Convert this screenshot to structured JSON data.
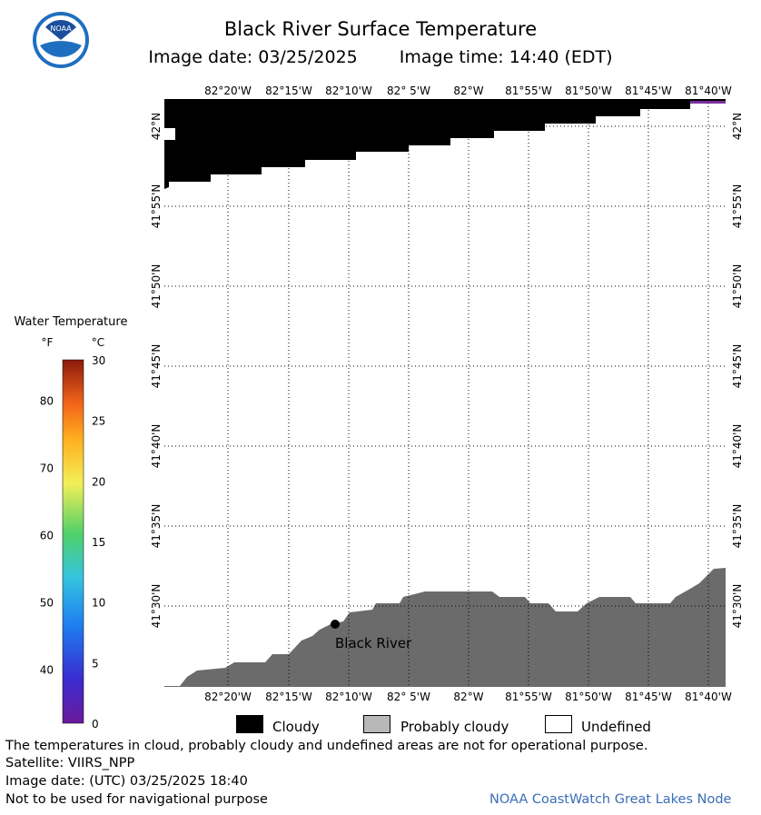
{
  "header": {
    "title": "Black River Surface Temperature",
    "image_date": "Image date: 03/25/2025",
    "image_time": "Image time: 14:40 (EDT)"
  },
  "logo": {
    "text": "NOAA",
    "icon": "noaa-logo-icon"
  },
  "map": {
    "lon_labels": [
      "82°20'W",
      "82°15'W",
      "82°10'W",
      "82° 5'W",
      "82°W",
      "81°55'W",
      "81°50'W",
      "81°45'W",
      "81°40'W"
    ],
    "lat_labels": [
      "42°N",
      "41°55'N",
      "41°50'N",
      "41°45'N",
      "41°40'N",
      "41°35'N",
      "41°30'N"
    ],
    "place_label": "Black River",
    "colors": {
      "cloudy": "#000000",
      "land": "#6b6b6b",
      "water": "#ffffff",
      "grid": "#000000"
    }
  },
  "colorbar": {
    "title": "Water Temperature",
    "unit_f": "°F",
    "unit_c": "°C",
    "f_ticks": [
      "80",
      "70",
      "60",
      "50",
      "40"
    ],
    "c_ticks": [
      "30",
      "25",
      "20",
      "15",
      "10",
      "5",
      "0"
    ],
    "range_c": [
      0,
      30
    ],
    "colors": [
      "#6a1b9a",
      "#3a2bd0",
      "#1e7ef0",
      "#34c4e0",
      "#4fd06a",
      "#f2ef57",
      "#ffb01f",
      "#f2641a",
      "#8b1a0c"
    ]
  },
  "legend": {
    "cloudy": "Cloudy",
    "probably_cloudy": "Probably cloudy",
    "undefined": "Undefined",
    "colors": {
      "cloudy": "#000000",
      "probably_cloudy": "#b8b8b8",
      "undefined": "#ffffff"
    }
  },
  "footer": {
    "disclaimer": "The temperatures in cloud, probably cloudy and undefined areas are not for operational purpose.",
    "satellite": "Satellite: VIIRS_NPP",
    "utc_date": "Image date: (UTC) 03/25/2025  18:40",
    "nav_warning": "Not to be used for navigational purpose",
    "credit": "NOAA CoastWatch Great Lakes Node"
  }
}
